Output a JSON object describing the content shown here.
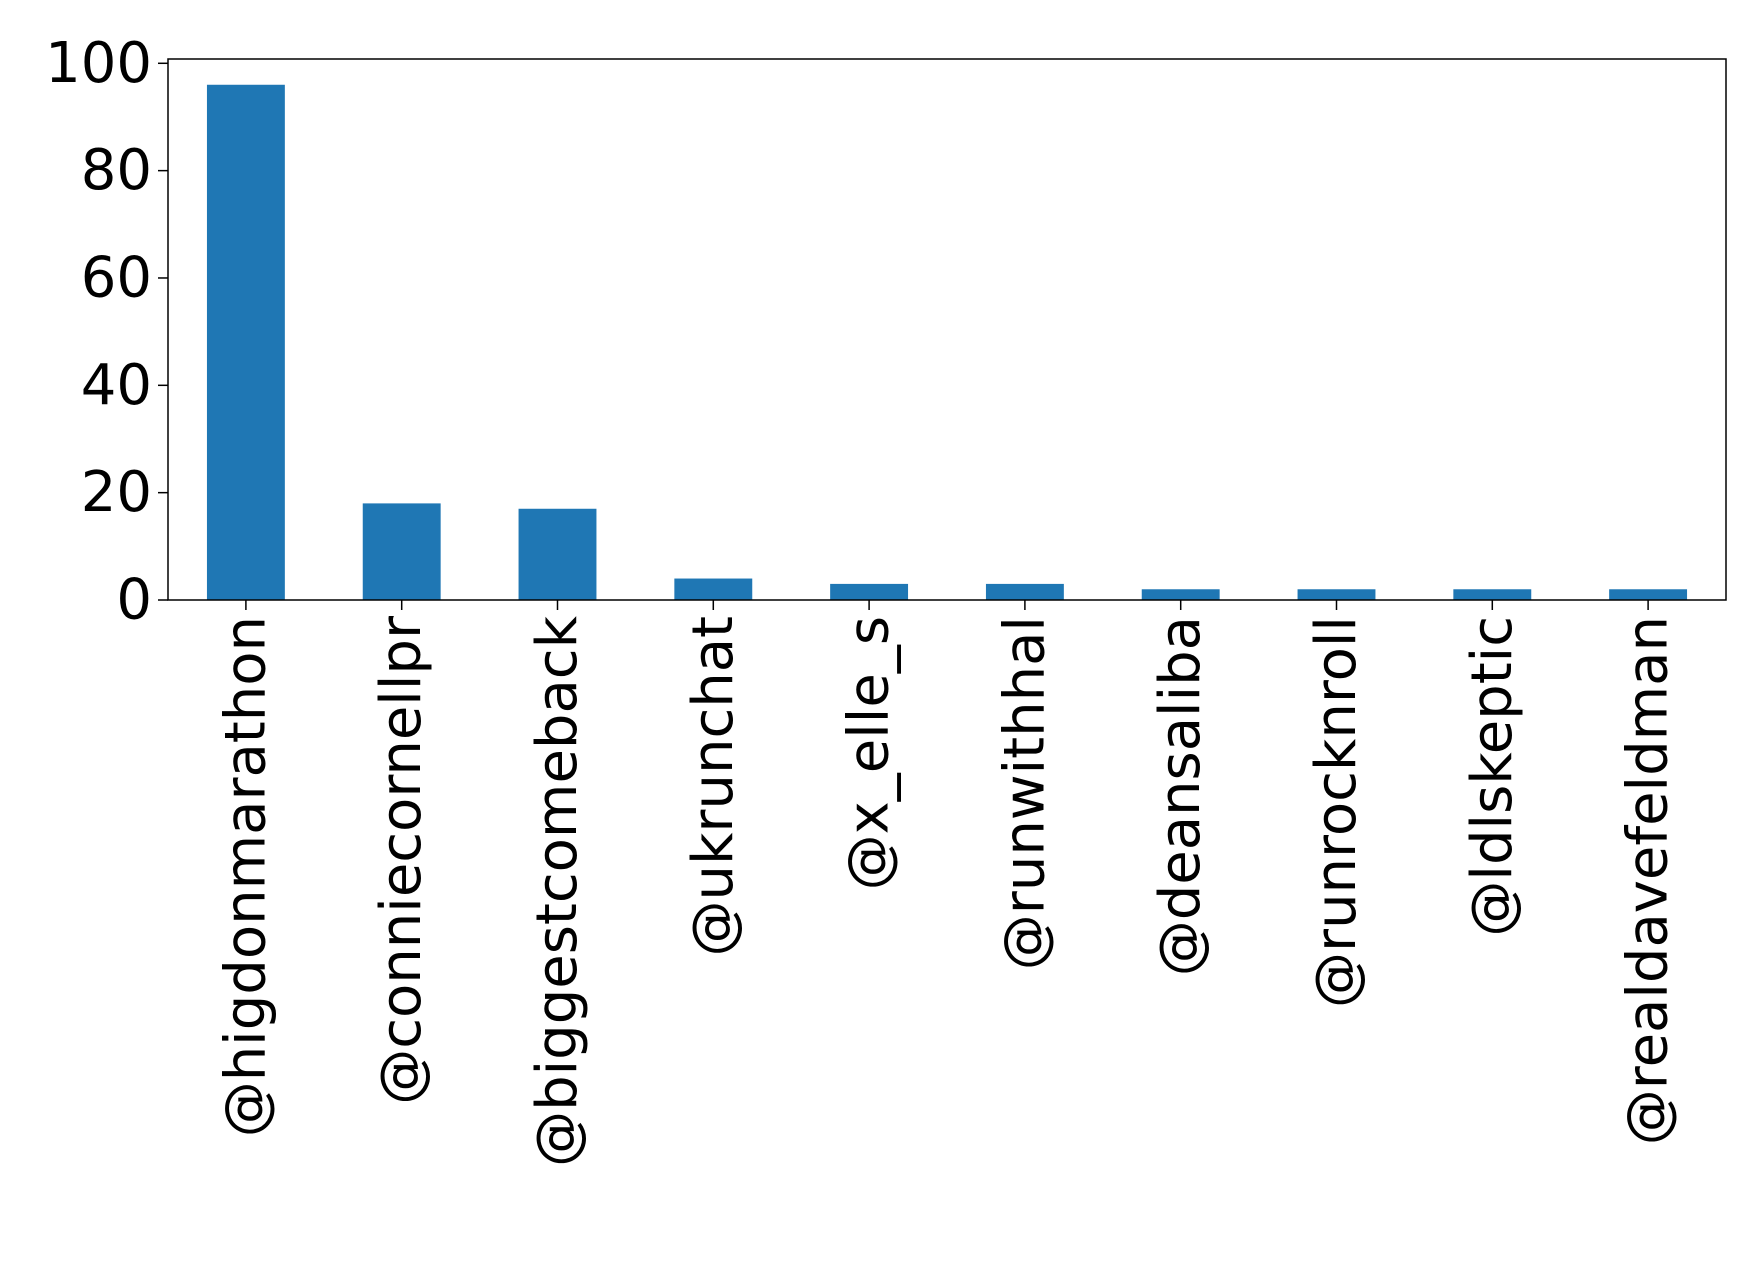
{
  "chart_data": {
    "type": "bar",
    "title": "",
    "xlabel": "",
    "ylabel": "",
    "categories": [
      "@higdonmarathon",
      "@conniecornellpr",
      "@biggestcomeback",
      "@ukrunchat",
      "@x_elle_s",
      "@runwithhal",
      "@deansaliba",
      "@runrocknroll",
      "@ldlskeptic",
      "@realdavefeldman"
    ],
    "values": [
      96,
      18,
      17,
      4,
      3,
      3,
      2,
      2,
      2,
      2
    ],
    "ylim": [
      0,
      100.8
    ],
    "yticks": [
      0,
      20,
      40,
      60,
      80,
      100
    ],
    "grid": false,
    "legend": "none",
    "bar_color": "#1f77b4"
  }
}
